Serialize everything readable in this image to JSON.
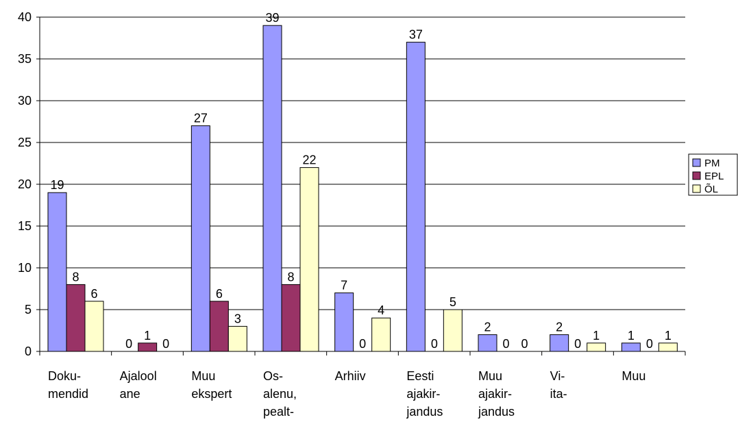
{
  "chart_data": {
    "type": "bar",
    "categories": [
      [
        "Doku-",
        "mendid"
      ],
      [
        "Ajalool",
        "ane"
      ],
      [
        "Muu",
        "ekspert"
      ],
      [
        "Os-",
        "alenu,",
        "pealt-"
      ],
      [
        "Arhiiv"
      ],
      [
        "Eesti",
        "ajakir-",
        "jandus"
      ],
      [
        "Muu",
        "ajakir-",
        "jandus"
      ],
      [
        "Vi-",
        "ita-"
      ],
      [
        "Muu"
      ]
    ],
    "series": [
      {
        "name": "PM",
        "color": "#9999ff",
        "values": [
          19,
          0,
          27,
          39,
          7,
          37,
          2,
          2,
          1
        ]
      },
      {
        "name": "EPL",
        "color": "#993366",
        "values": [
          8,
          1,
          6,
          8,
          0,
          0,
          0,
          0,
          0
        ]
      },
      {
        "name": "ÕL",
        "color": "#ffffcc",
        "values": [
          6,
          0,
          3,
          22,
          4,
          5,
          0,
          1,
          1
        ]
      }
    ],
    "ylim": [
      0,
      40
    ],
    "yticks": [
      0,
      5,
      10,
      15,
      20,
      25,
      30,
      35,
      40
    ],
    "grid": true,
    "legend": "right"
  }
}
